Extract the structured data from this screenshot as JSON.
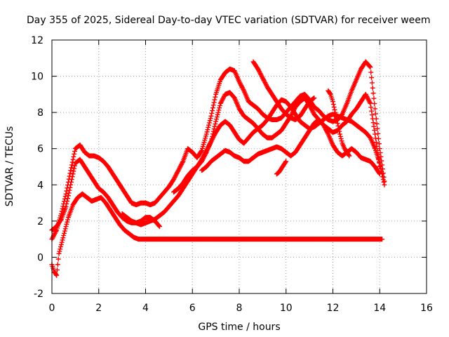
{
  "chart_data": {
    "type": "scatter",
    "title": "Day 355 of 2025, Sidereal Day-to-day VTEC variation (SDTVAR) for receiver weem",
    "xlabel": "GPS time / hours",
    "ylabel": "SDTVAR / TECUs",
    "xlim": [
      0,
      16
    ],
    "ylim": [
      -2,
      12
    ],
    "xticks": [
      0,
      2,
      4,
      6,
      8,
      10,
      12,
      14,
      16
    ],
    "yticks": [
      -2,
      0,
      2,
      4,
      6,
      8,
      10,
      12
    ],
    "grid": true,
    "legend": "none",
    "marker": "plus",
    "series_color": "#ff0000",
    "series": [
      {
        "name": "trace-1",
        "x": [
          0.0,
          0.1,
          0.2,
          0.3,
          0.5,
          0.7,
          0.9,
          1.1,
          1.3,
          1.5,
          1.7,
          1.9,
          2.1,
          2.3,
          2.5,
          2.7,
          2.9,
          3.1,
          3.3,
          3.5,
          3.7,
          3.9,
          4.1,
          4.3,
          4.5,
          4.7,
          4.9,
          5.1,
          5.3,
          5.5,
          5.7,
          5.9,
          6.1,
          6.3,
          6.5,
          6.7,
          6.9,
          7.1,
          7.3,
          7.5,
          7.7,
          7.9,
          8.1,
          8.3,
          8.5,
          8.7,
          8.9,
          9.1,
          9.3,
          9.5,
          9.7,
          9.9,
          10.1,
          10.3,
          10.5,
          10.7,
          10.9,
          11.1,
          11.3,
          11.5,
          11.7,
          11.9,
          12.1,
          12.3,
          12.5,
          12.7,
          12.9,
          13.1,
          13.3,
          13.5,
          13.7,
          13.9,
          14.1
        ],
        "y": [
          -0.4,
          -0.8,
          -1.0,
          0.2,
          1.2,
          2.2,
          2.9,
          3.3,
          3.5,
          3.3,
          3.1,
          3.2,
          3.3,
          3.0,
          2.6,
          2.2,
          1.8,
          1.5,
          1.3,
          1.1,
          1.0,
          1.0,
          1.0,
          1.0,
          1.0,
          1.0,
          1.0,
          1.0,
          1.0,
          1.0,
          1.0,
          1.0,
          1.0,
          1.0,
          1.0,
          1.0,
          1.0,
          1.0,
          1.0,
          1.0,
          1.0,
          1.0,
          1.0,
          1.0,
          1.0,
          1.0,
          1.0,
          1.0,
          1.0,
          1.0,
          1.0,
          1.0,
          1.0,
          1.0,
          1.0,
          1.0,
          1.0,
          1.0,
          1.0,
          1.0,
          1.0,
          1.0,
          1.0,
          1.0,
          1.0,
          1.0,
          1.0,
          1.0,
          1.0,
          1.0,
          1.0,
          1.0,
          1.0
        ]
      },
      {
        "name": "trace-2",
        "x": [
          0.0,
          0.2,
          0.4,
          0.6,
          0.8,
          1.0,
          1.2,
          1.4,
          1.6,
          1.8,
          2.0,
          2.2,
          2.4,
          2.6,
          2.8,
          3.0,
          3.2,
          3.4,
          3.6,
          3.8,
          4.0,
          4.2,
          4.4,
          4.6
        ],
        "y": [
          1.5,
          1.7,
          2.1,
          2.8,
          4.0,
          5.2,
          5.4,
          5.0,
          4.6,
          4.2,
          3.8,
          3.6,
          3.3,
          2.9,
          2.5,
          2.2,
          2.0,
          1.9,
          1.9,
          2.0,
          2.2,
          2.2,
          2.0,
          1.7
        ]
      },
      {
        "name": "trace-3",
        "x": [
          0.0,
          0.2,
          0.4,
          0.6,
          0.8,
          1.0,
          1.2,
          1.4,
          1.6,
          1.8,
          2.0,
          2.2,
          2.4,
          2.6,
          2.8,
          3.0,
          3.2,
          3.4,
          3.6,
          3.8,
          4.0,
          4.2,
          4.4,
          4.6,
          4.8,
          5.0,
          5.2,
          5.4,
          5.6,
          5.8,
          6.0,
          6.2,
          6.4,
          6.6,
          6.8,
          7.0,
          7.2,
          7.4,
          7.6,
          7.8,
          8.0,
          8.2,
          8.4,
          8.6,
          8.8,
          9.0,
          9.2,
          9.4,
          9.6,
          9.8,
          10.0,
          10.2,
          10.4,
          10.6,
          10.8,
          11.0,
          11.2,
          11.4,
          11.6,
          11.8,
          12.0,
          12.2,
          12.4,
          12.6,
          12.8,
          13.0,
          13.2,
          13.4,
          13.6,
          13.8,
          14.0,
          14.2
        ],
        "y": [
          1.0,
          1.5,
          2.4,
          3.5,
          4.8,
          6.0,
          6.2,
          5.8,
          5.6,
          5.6,
          5.5,
          5.3,
          5.0,
          4.6,
          4.2,
          3.8,
          3.4,
          3.0,
          2.9,
          3.0,
          3.0,
          2.9,
          3.0,
          3.3,
          3.6,
          3.9,
          4.3,
          4.8,
          5.3,
          6.0,
          5.8,
          5.5,
          5.9,
          6.8,
          7.8,
          9.0,
          9.8,
          10.2,
          10.4,
          10.3,
          9.7,
          9.2,
          8.6,
          8.4,
          8.2,
          7.9,
          7.7,
          7.6,
          7.6,
          7.7,
          8.0,
          8.3,
          8.6,
          8.9,
          9.0,
          8.7,
          8.3,
          8.1,
          7.8,
          7.6,
          7.5,
          7.6,
          7.9,
          8.5,
          9.2,
          9.8,
          10.4,
          10.8,
          10.5,
          8.2,
          6.0,
          4.2
        ]
      },
      {
        "name": "trace-4",
        "x": [
          3.0,
          3.2,
          3.4,
          3.6,
          3.8,
          4.0,
          4.2,
          4.4,
          4.6,
          4.8,
          5.0,
          5.2,
          5.4,
          5.6,
          5.8,
          6.0,
          6.2,
          6.4,
          6.6,
          6.8,
          7.0,
          7.2,
          7.4,
          7.6,
          7.8,
          8.0,
          8.2,
          8.4,
          8.6,
          8.8,
          9.0,
          9.2,
          9.4,
          9.6,
          9.8,
          10.0,
          10.2,
          10.4,
          10.6,
          10.8,
          11.0,
          11.2,
          11.4,
          11.6,
          11.8,
          12.0,
          12.2,
          12.4,
          12.6,
          12.8,
          13.0,
          13.2,
          13.4,
          13.6,
          13.8,
          14.0
        ],
        "y": [
          2.4,
          2.2,
          2.0,
          1.9,
          1.8,
          1.9,
          2.0,
          2.1,
          2.3,
          2.5,
          2.8,
          3.1,
          3.4,
          3.8,
          4.2,
          4.6,
          5.0,
          5.3,
          5.8,
          6.4,
          7.5,
          8.5,
          9.0,
          9.1,
          8.8,
          8.2,
          7.8,
          7.6,
          7.4,
          7.1,
          6.8,
          6.6,
          6.6,
          6.8,
          7.0,
          7.4,
          7.8,
          8.3,
          8.6,
          8.8,
          8.4,
          7.9,
          7.6,
          7.3,
          7.1,
          6.9,
          7.0,
          7.3,
          7.5,
          7.9,
          8.2,
          8.6,
          9.0,
          8.5,
          6.8,
          5.0
        ]
      },
      {
        "name": "trace-5",
        "x": [
          5.2,
          5.4,
          5.6,
          5.8,
          6.0,
          6.2,
          6.4,
          6.6,
          6.8,
          7.0,
          7.2,
          7.4,
          7.6,
          7.8,
          8.0,
          8.2,
          8.4,
          8.6,
          8.8,
          9.0,
          9.2,
          9.4,
          9.6,
          9.8,
          10.0,
          10.2,
          10.4,
          10.6,
          10.8,
          11.0,
          11.2,
          11.4,
          11.6,
          11.8,
          12.0,
          12.2,
          12.4,
          12.6,
          12.8,
          13.0,
          13.2,
          13.4,
          13.6,
          13.8,
          14.0,
          14.2
        ],
        "y": [
          3.6,
          3.8,
          4.1,
          4.5,
          4.8,
          5.0,
          5.4,
          5.9,
          6.4,
          6.9,
          7.3,
          7.5,
          7.3,
          6.9,
          6.5,
          6.3,
          6.6,
          6.9,
          7.1,
          7.3,
          7.6,
          8.0,
          8.4,
          8.7,
          8.6,
          8.3,
          7.9,
          7.5,
          7.3,
          7.1,
          7.2,
          7.4,
          7.6,
          7.8,
          7.9,
          7.8,
          7.7,
          7.6,
          7.5,
          7.3,
          7.1,
          6.9,
          6.6,
          6.0,
          5.2,
          4.0
        ]
      },
      {
        "name": "trace-6",
        "x": [
          6.4,
          6.6,
          6.8,
          7.0,
          7.2,
          7.4,
          7.6,
          7.8,
          8.0,
          8.2,
          8.4,
          8.6,
          8.8,
          9.0,
          9.2,
          9.4,
          9.6,
          9.8,
          10.0,
          10.2,
          10.4,
          10.6,
          10.8,
          11.0,
          11.2,
          11.4,
          11.6,
          11.8,
          12.0,
          12.2,
          12.4,
          12.6,
          12.8,
          13.0,
          13.2,
          13.4,
          13.6,
          13.8,
          14.0
        ],
        "y": [
          4.8,
          5.0,
          5.3,
          5.5,
          5.7,
          5.9,
          5.8,
          5.6,
          5.5,
          5.3,
          5.3,
          5.5,
          5.7,
          5.8,
          5.9,
          6.0,
          6.1,
          6.0,
          5.8,
          5.6,
          5.8,
          6.2,
          6.6,
          7.0,
          7.4,
          7.6,
          7.3,
          6.8,
          6.2,
          5.8,
          5.6,
          5.8,
          6.0,
          5.8,
          5.5,
          5.4,
          5.3,
          5.0,
          4.6
        ]
      },
      {
        "name": "trace-7",
        "x": [
          8.6,
          8.8,
          9.0,
          9.2,
          9.4,
          9.6,
          9.8,
          10.0,
          10.2,
          10.4,
          10.6,
          10.8,
          11.0,
          11.2
        ],
        "y": [
          10.8,
          10.4,
          9.9,
          9.4,
          9.0,
          8.6,
          8.2,
          7.9,
          7.7,
          7.6,
          7.8,
          8.2,
          8.6,
          8.8
        ]
      },
      {
        "name": "trace-8",
        "x": [
          11.8,
          11.9,
          12.0,
          12.1,
          12.2,
          12.3,
          12.4,
          12.5,
          12.6,
          12.7
        ],
        "y": [
          9.2,
          9.0,
          8.6,
          8.0,
          7.4,
          6.8,
          6.3,
          6.0,
          5.8,
          5.6
        ]
      },
      {
        "name": "trace-9",
        "x": [
          9.6,
          9.7,
          9.8,
          9.9,
          10.0
        ],
        "y": [
          4.6,
          4.7,
          4.9,
          5.1,
          5.3
        ]
      }
    ]
  }
}
